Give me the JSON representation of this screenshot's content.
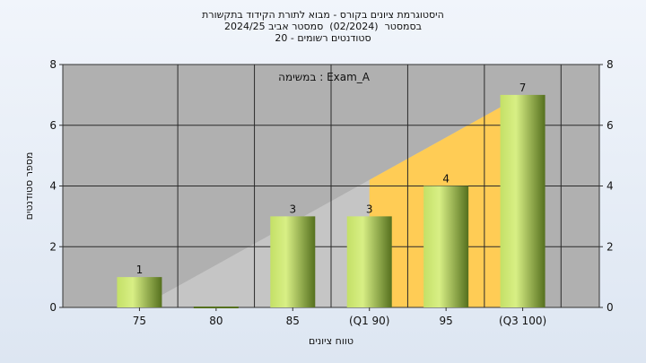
{
  "chart_data": {
    "type": "bar",
    "title_lines": [
      "היסטוגרמת ציונים בקורס - מבוא לתורת הקידוד בתקשורת",
      "בסמסטר  (02/2024)  סמסטר אביב 2024/25",
      "סטודנטים רשומים - 20"
    ],
    "annotation": "במשימה : Exam_A",
    "categories": [
      "75",
      "80",
      "85",
      "(Q1 90)",
      "95",
      "(Q3 100)"
    ],
    "values": [
      1,
      0,
      3,
      3,
      4,
      7
    ],
    "data_labels": [
      "1",
      "",
      "3",
      "3",
      "4",
      "7"
    ],
    "xlabel": "טווח ציונים",
    "ylabel": "מספר סטודנטים",
    "ylim": [
      0,
      8
    ],
    "yticks": [
      "0",
      "2",
      "4",
      "6",
      "8"
    ],
    "grid": true,
    "secondary_y_axis": true,
    "quartile_shading": {
      "q1_category": "(Q1 90)",
      "q3_category": "(Q3 100)",
      "inner_color": "#ffcc55",
      "outer_color": "#c8c8c8"
    },
    "colors": {
      "plot_background": "#b0b0b0",
      "bar_light": "#d4ec7c",
      "bar_dark": "#55701e"
    }
  }
}
